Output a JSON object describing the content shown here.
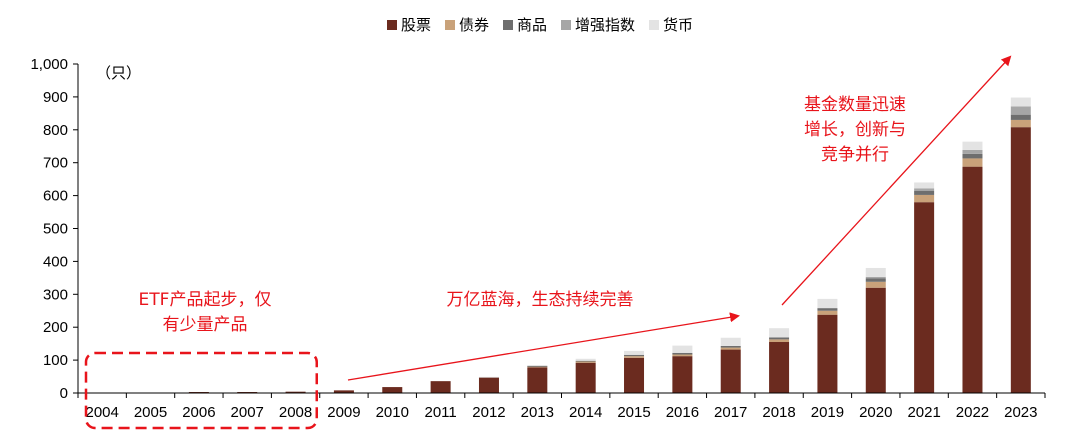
{
  "chart_data": {
    "type": "bar",
    "stacked": true,
    "categories": [
      "2004",
      "2005",
      "2006",
      "2007",
      "2008",
      "2009",
      "2010",
      "2011",
      "2012",
      "2013",
      "2014",
      "2015",
      "2016",
      "2017",
      "2018",
      "2019",
      "2020",
      "2021",
      "2022",
      "2023"
    ],
    "series": [
      {
        "name": "股票",
        "color": "#6b2b1f",
        "values": [
          1,
          1,
          3,
          3,
          4,
          8,
          18,
          36,
          48,
          78,
          92,
          107,
          112,
          132,
          155,
          238,
          320,
          580,
          688,
          808
        ]
      },
      {
        "name": "债券",
        "color": "#c9a27a",
        "values": [
          0,
          0,
          0,
          0,
          0,
          0,
          0,
          0,
          0,
          3,
          4,
          5,
          5,
          6,
          8,
          12,
          18,
          22,
          25,
          22
        ]
      },
      {
        "name": "商品",
        "color": "#6e6e6e",
        "values": [
          0,
          0,
          0,
          0,
          0,
          0,
          0,
          0,
          0,
          1,
          2,
          4,
          5,
          5,
          6,
          8,
          10,
          12,
          14,
          16
        ]
      },
      {
        "name": "增强指数",
        "color": "#a6a6a6",
        "values": [
          0,
          0,
          0,
          0,
          0,
          0,
          0,
          0,
          0,
          0,
          0,
          0,
          0,
          0,
          0,
          0,
          5,
          8,
          12,
          25
        ]
      },
      {
        "name": "货币",
        "color": "#e3e3e3",
        "values": [
          0,
          0,
          0,
          0,
          0,
          0,
          0,
          0,
          1,
          3,
          6,
          12,
          22,
          25,
          28,
          28,
          27,
          18,
          25,
          27
        ]
      }
    ],
    "ylim": [
      0,
      1000
    ],
    "yticks": [
      "0",
      "100",
      "200",
      "300",
      "400",
      "500",
      "600",
      "700",
      "800",
      "900",
      "1,000"
    ],
    "ylabel": "（只）",
    "legend_position": "top-center",
    "grid": false,
    "annotations": {
      "early": [
        "ETF产品起步，仅",
        "有少量产品"
      ],
      "middle": "万亿蓝海，生态持续完善",
      "late": [
        "基金数量迅速",
        "增长，创新与",
        "竞争并行"
      ]
    },
    "highlight_range": [
      "2004",
      "2008"
    ]
  }
}
